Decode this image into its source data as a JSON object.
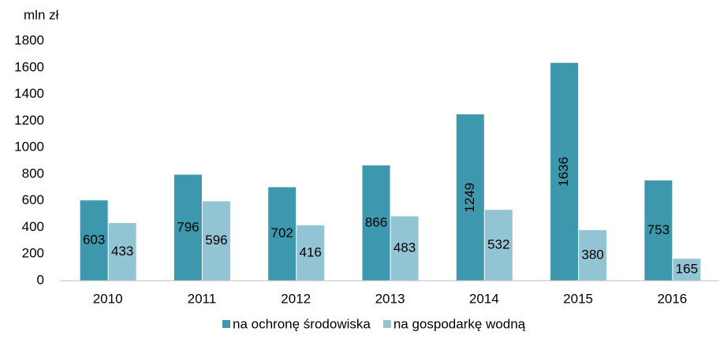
{
  "chart_data": {
    "type": "bar",
    "y_label": "mln zł",
    "categories": [
      "2010",
      "2011",
      "2012",
      "2013",
      "2014",
      "2015",
      "2016"
    ],
    "series": [
      {
        "name": "na ochronę środowiska",
        "color": "#3d98ae",
        "values": [
          603,
          796,
          702,
          866,
          1249,
          1636,
          753
        ]
      },
      {
        "name": "na gospodarkę wodną",
        "color": "#93c4d4",
        "values": [
          433,
          596,
          416,
          483,
          532,
          380,
          165
        ]
      }
    ],
    "ylim": [
      0,
      1800
    ],
    "yticks": [
      0,
      200,
      400,
      600,
      800,
      1000,
      1200,
      1400,
      1600,
      1800
    ],
    "grid": false,
    "legend": "bottom"
  }
}
